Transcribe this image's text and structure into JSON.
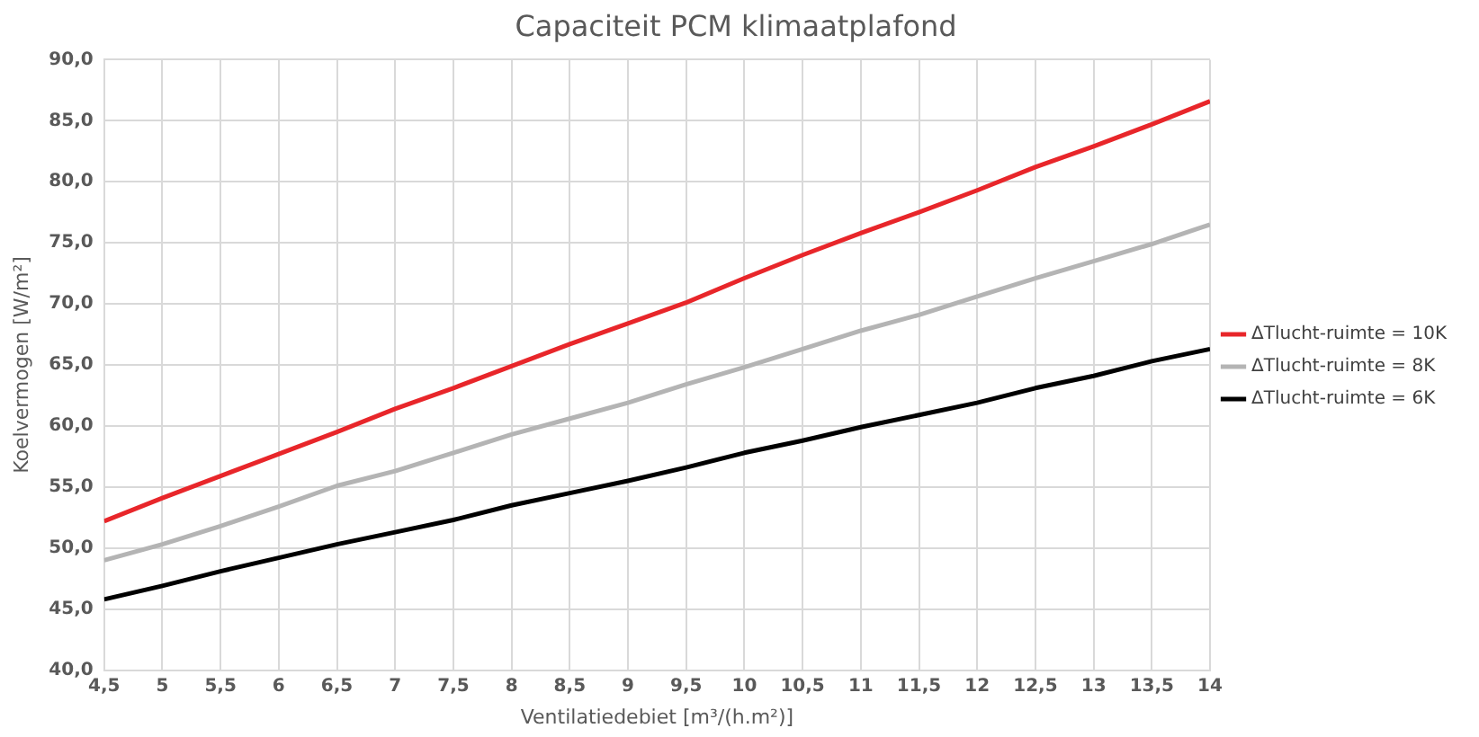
{
  "chart_data": {
    "type": "line",
    "title": "Capaciteit PCM klimaatplafond",
    "xlabel": "Ventilatiedebiet [m³/(h.m²)]",
    "ylabel": "Koelvermogen [W/m²]",
    "x": [
      4.5,
      5,
      5.5,
      6,
      6.5,
      7,
      7.5,
      8,
      8.5,
      9,
      9.5,
      10,
      10.5,
      11,
      11.5,
      12,
      12.5,
      13,
      13.5,
      14
    ],
    "series": [
      {
        "name": "ΔTlucht-ruimte = 10K",
        "color": "#e8262a",
        "values": [
          52.2,
          54.1,
          55.9,
          57.7,
          59.5,
          61.4,
          63.1,
          64.9,
          66.7,
          68.4,
          70.1,
          72.1,
          74.0,
          75.8,
          77.5,
          79.3,
          81.2,
          82.9,
          84.7,
          86.6
        ]
      },
      {
        "name": "ΔTlucht-ruimte = 8K",
        "color": "#b4b4b4",
        "values": [
          49.0,
          50.3,
          51.8,
          53.4,
          55.1,
          56.3,
          57.8,
          59.3,
          60.6,
          61.9,
          63.4,
          64.8,
          66.3,
          67.8,
          69.1,
          70.6,
          72.1,
          73.5,
          74.9,
          76.5
        ]
      },
      {
        "name": "ΔTlucht-ruimte = 6K",
        "color": "#000000",
        "values": [
          45.8,
          46.9,
          48.1,
          49.2,
          50.3,
          51.3,
          52.3,
          53.5,
          54.5,
          55.5,
          56.6,
          57.8,
          58.8,
          59.9,
          60.9,
          61.9,
          63.1,
          64.1,
          65.3,
          66.3
        ]
      }
    ],
    "xlim": [
      4.5,
      14
    ],
    "xticks": [
      {
        "value": 4.5,
        "label": "4,5"
      },
      5,
      {
        "value": 5.5,
        "label": "5,5"
      },
      6,
      {
        "value": 6.5,
        "label": "6,5"
      },
      7,
      {
        "value": 7.5,
        "label": "7,5"
      },
      8,
      {
        "value": 8.5,
        "label": "8,5"
      },
      9,
      {
        "value": 9.5,
        "label": "9,5"
      },
      10,
      {
        "value": 10.5,
        "label": "10,5"
      },
      11,
      {
        "value": 11.5,
        "label": "11,5"
      },
      12,
      {
        "value": 12.5,
        "label": "12,5"
      },
      13,
      {
        "value": 13.5,
        "label": "13,5"
      },
      14
    ],
    "ylim": [
      40,
      90
    ],
    "yticks": [
      {
        "value": 40,
        "label": "40,0"
      },
      {
        "value": 45,
        "label": "45,0"
      },
      {
        "value": 50,
        "label": "50,0"
      },
      {
        "value": 55,
        "label": "55,0"
      },
      {
        "value": 60,
        "label": "60,0"
      },
      {
        "value": 65,
        "label": "65,0"
      },
      {
        "value": 70,
        "label": "70,0"
      },
      {
        "value": 75,
        "label": "75,0"
      },
      {
        "value": 80,
        "label": "80,0"
      },
      {
        "value": 85,
        "label": "85,0"
      },
      {
        "value": 90,
        "label": "90,0"
      }
    ],
    "grid": true,
    "legend": "right",
    "marker": "none",
    "line_style": "solid"
  }
}
